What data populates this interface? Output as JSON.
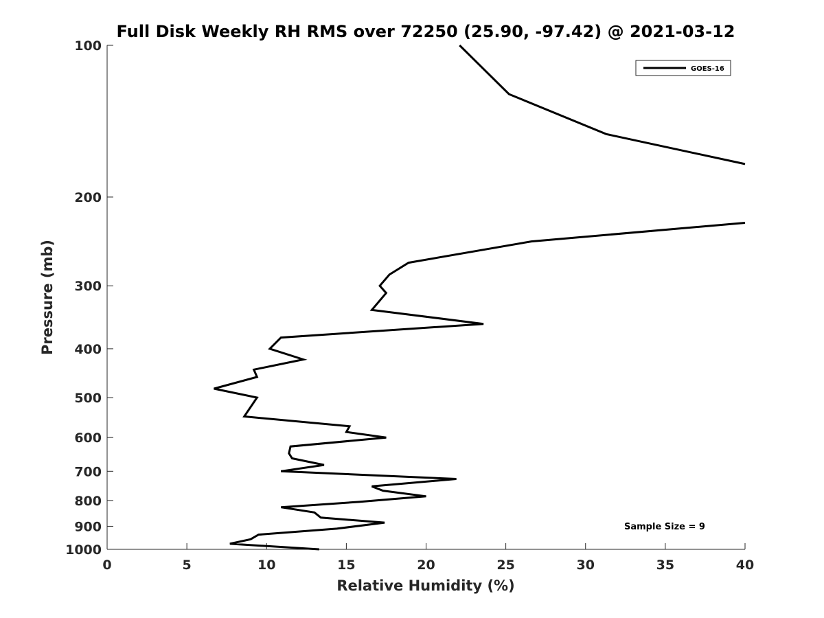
{
  "chart_data": {
    "type": "line",
    "title": "Full Disk Weekly RH RMS over 72250 (25.90, -97.42) @ 2021-03-12",
    "xlabel": "Relative Humidity (%)",
    "ylabel": "Pressure (mb)",
    "xlim": [
      0,
      40
    ],
    "ylim": [
      100,
      1000
    ],
    "y_scale": "log",
    "y_reversed": true,
    "grid": false,
    "legend_position": "top-right",
    "xticks": [
      0,
      5,
      10,
      15,
      20,
      25,
      30,
      35,
      40
    ],
    "yticks": [
      100,
      200,
      300,
      400,
      500,
      600,
      700,
      800,
      900,
      1000
    ],
    "series": [
      {
        "name": "GOES-16",
        "color": "#000000",
        "x": [
          22.1,
          25.2,
          31.3,
          40.0,
          null,
          40.0,
          26.6,
          18.9,
          17.7,
          17.1,
          17.5,
          16.6,
          23.6,
          10.9,
          10.2,
          12.3,
          9.2,
          9.4,
          6.7,
          9.4,
          8.6,
          15.2,
          15.0,
          17.5,
          11.5,
          11.4,
          11.6,
          13.6,
          10.9,
          21.9,
          16.6,
          17.3,
          20.0,
          15.8,
          10.9,
          13.0,
          13.4,
          17.4,
          14.4,
          9.5,
          9.0,
          7.7,
          13.3
        ],
        "y": [
          100,
          125,
          150,
          172,
          null,
          225,
          245,
          270,
          285,
          300,
          310,
          335,
          357,
          380,
          400,
          420,
          440,
          455,
          480,
          500,
          545,
          570,
          585,
          600,
          625,
          645,
          660,
          680,
          700,
          725,
          750,
          765,
          785,
          805,
          825,
          845,
          865,
          885,
          910,
          935,
          955,
          975,
          1000
        ]
      }
    ],
    "annotations": [
      "Sample Size = 9"
    ]
  }
}
